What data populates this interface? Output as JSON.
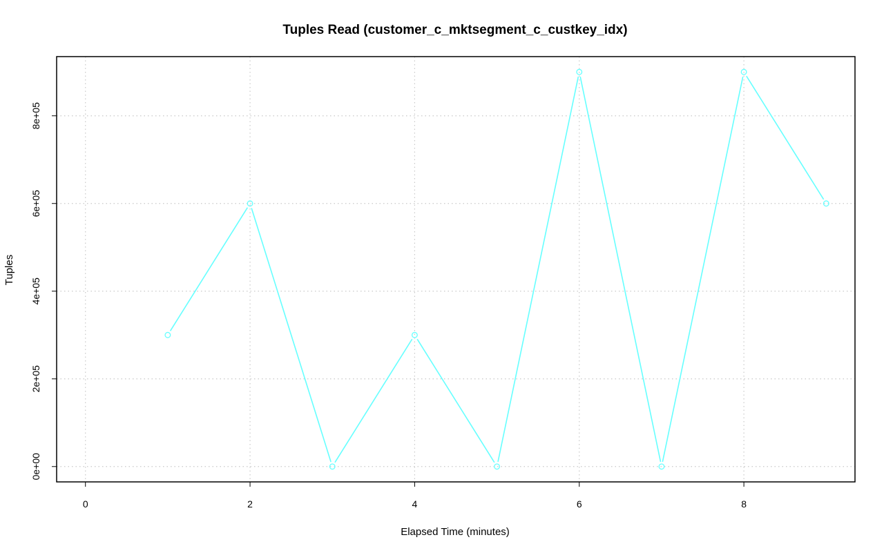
{
  "chart_data": {
    "type": "line",
    "title": "Tuples Read (customer_c_mktsegment_c_custkey_idx)",
    "xlabel": "Elapsed Time (minutes)",
    "ylabel": "Tuples",
    "xlim": [
      -0.35,
      9.35
    ],
    "ylim": [
      -35000,
      935000
    ],
    "x_ticks": [
      0,
      2,
      4,
      6,
      8
    ],
    "x_tick_labels": [
      "0",
      "2",
      "4",
      "6",
      "8"
    ],
    "y_ticks": [
      0,
      200000,
      400000,
      600000,
      800000
    ],
    "y_tick_labels": [
      "0e+00",
      "2e+05",
      "4e+05",
      "6e+05",
      "8e+05"
    ],
    "grid": true,
    "line_color": "#66ffff",
    "series": [
      {
        "x": [
          1,
          2,
          3,
          4,
          5,
          6,
          7,
          8,
          9
        ],
        "y": [
          300000,
          600000,
          0,
          300000,
          0,
          900000,
          0,
          900000,
          600000
        ]
      }
    ]
  }
}
